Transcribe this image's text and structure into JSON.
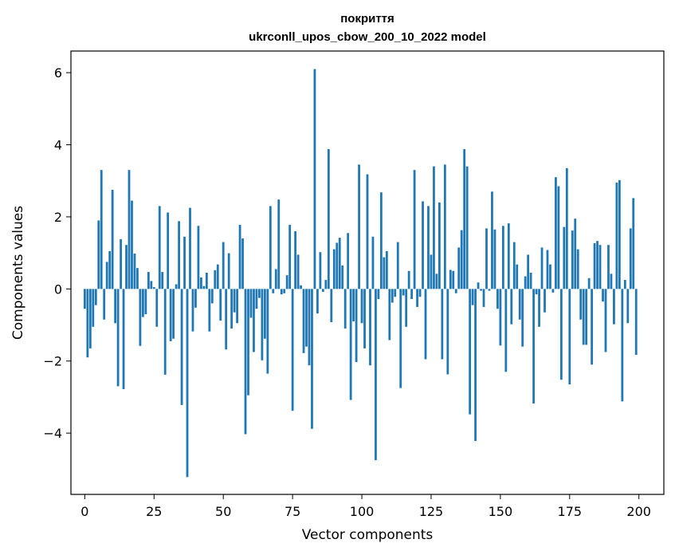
{
  "chart_data": {
    "type": "bar",
    "title_line1": "покриття",
    "title_line2": "ukrconll_upos_cbow_200_10_2022 model",
    "xlabel": "Vector components",
    "ylabel": "Components values",
    "xlim": [
      -5,
      209
    ],
    "ylim": [
      -5.7,
      6.6
    ],
    "xticks": [
      0,
      25,
      50,
      75,
      100,
      125,
      150,
      175,
      200
    ],
    "xtick_labels": [
      "0",
      "25",
      "50",
      "75",
      "100",
      "125",
      "150",
      "175",
      "200"
    ],
    "yticks": [
      -4,
      -2,
      0,
      2,
      4,
      6
    ],
    "ytick_labels": [
      "−4",
      "−2",
      "0",
      "2",
      "4",
      "6"
    ],
    "grid": false,
    "bar_color": "#1f77b4",
    "values": [
      -0.55,
      -1.9,
      -1.65,
      -1.05,
      -0.45,
      1.9,
      3.3,
      -0.85,
      0.75,
      1.05,
      2.75,
      -0.95,
      -2.7,
      1.38,
      -2.78,
      1.22,
      3.3,
      2.45,
      0.98,
      0.58,
      -1.58,
      -0.78,
      -0.7,
      0.47,
      0.22,
      0.05,
      -1.05,
      2.3,
      0.47,
      -2.38,
      2.12,
      -1.45,
      -1.38,
      0.13,
      1.88,
      -3.22,
      1.45,
      -5.22,
      2.25,
      -1.18,
      -0.52,
      1.75,
      0.32,
      0.08,
      0.45,
      -1.18,
      -0.4,
      0.52,
      0.68,
      -0.88,
      1.3,
      -1.68,
      0.99,
      -1.1,
      -0.65,
      -0.95,
      1.78,
      1.4,
      -4.03,
      -2.95,
      -0.8,
      -1.75,
      -0.55,
      -0.25,
      -1.98,
      -1.38,
      -2.35,
      2.3,
      -0.12,
      0.55,
      2.48,
      -0.15,
      -0.12,
      0.38,
      1.78,
      -3.38,
      1.6,
      0.95,
      0.1,
      -1.78,
      -1.6,
      -2.12,
      -3.88,
      6.1,
      -0.68,
      1.02,
      -0.08,
      0.25,
      3.88,
      -0.92,
      1.1,
      1.28,
      1.42,
      0.65,
      -1.1,
      1.55,
      -3.08,
      -0.9,
      -2.03,
      3.45,
      -0.95,
      -1.65,
      3.18,
      -2.12,
      1.45,
      -4.75,
      -0.28,
      2.68,
      0.88,
      1.05,
      -1.42,
      -0.38,
      -0.22,
      1.3,
      -2.75,
      -0.18,
      -1.05,
      0.5,
      -0.28,
      3.3,
      -0.5,
      -0.22,
      2.43,
      -1.95,
      2.3,
      0.95,
      3.4,
      0.42,
      2.4,
      -1.95,
      3.45,
      -2.37,
      0.53,
      0.5,
      -0.12,
      1.15,
      1.63,
      3.88,
      3.4,
      -3.48,
      -0.45,
      -4.22,
      0.18,
      -0.05,
      -0.5,
      1.68,
      -0.05,
      2.7,
      1.65,
      -0.55,
      -1.57,
      1.75,
      -2.3,
      1.82,
      -0.98,
      1.3,
      0.68,
      -0.85,
      -1.6,
      0.35,
      0.95,
      0.45,
      -3.18,
      -0.15,
      -1.05,
      1.15,
      -0.65,
      1.08,
      0.68,
      -0.1,
      3.1,
      2.85,
      -2.52,
      1.72,
      3.35,
      -2.65,
      1.62,
      1.95,
      1.1,
      -0.85,
      -1.55,
      -1.55,
      0.3,
      -2.1,
      1.27,
      1.33,
      1.22,
      -0.35,
      -1.75,
      1.22,
      0.42,
      -0.98,
      2.95,
      3.02,
      -3.12,
      0.25,
      -0.95,
      1.68,
      2.52,
      -1.83
    ]
  }
}
